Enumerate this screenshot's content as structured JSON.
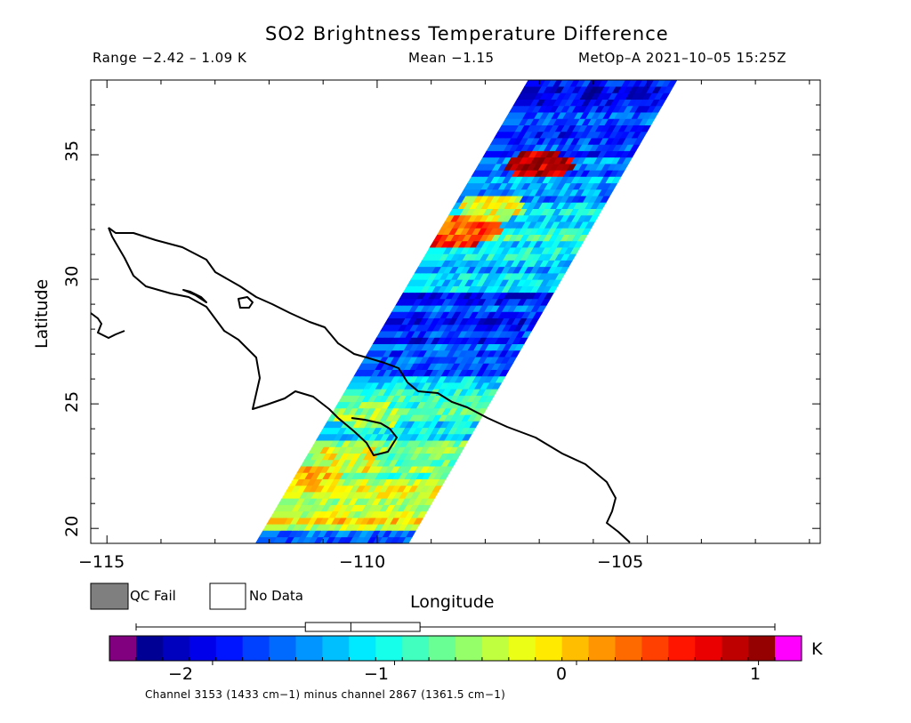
{
  "header": {
    "title": "SO2 Brightness Temperature Difference",
    "range_text": "Range −2.42 – 1.09 K",
    "mean_text": "Mean −1.15",
    "satellite_time": "MetOp–A 2021–10–05 15:25Z"
  },
  "axes": {
    "xlabel": "Longitude",
    "ylabel": "Latitude",
    "lon_range": [
      -115.3,
      -101.8
    ],
    "lat_range": [
      19.4,
      38.0
    ],
    "x_ticks": [
      {
        "value": -115,
        "label": "−115"
      },
      {
        "value": -110,
        "label": "−110"
      },
      {
        "value": -105,
        "label": "−105"
      }
    ],
    "y_ticks": [
      {
        "value": 20,
        "label": "20"
      },
      {
        "value": 25,
        "label": "25"
      },
      {
        "value": 30,
        "label": "30"
      },
      {
        "value": 35,
        "label": "35"
      }
    ]
  },
  "legend": {
    "qc_fail_label": "QC Fail",
    "qc_fail_color": "#7f7f7f",
    "no_data_label": "No Data",
    "no_data_color": "#ffffff"
  },
  "colorbar": {
    "unit": "K",
    "min": -2.42,
    "max": 1.09,
    "under_color": "#800080",
    "over_color": "#ff00ff",
    "ticks": [
      {
        "value": -2,
        "label": "−2"
      },
      {
        "value": -1,
        "label": "−1"
      },
      {
        "value": 0,
        "label": "0"
      },
      {
        "value": 1,
        "label": "1"
      }
    ],
    "boxplot": {
      "min": -2.42,
      "q1": -1.49,
      "median": -1.24,
      "q3": -0.86,
      "max": 1.09
    }
  },
  "footnote": "Channel 3153 (1433 cm−1) minus channel 2867 (1361.5 cm−1)",
  "swath": {
    "edges": [
      {
        "lat": 19.4,
        "lon_west": -112.25,
        "lon_east": -109.42
      },
      {
        "lat": 38.0,
        "lon_west": -107.2,
        "lon_east": -104.45
      }
    ],
    "anomalies": [
      {
        "lat": 31.8,
        "lon": -108.6,
        "value": 0.5
      },
      {
        "lat": 32.1,
        "lon": -108.3,
        "value": 0.3
      },
      {
        "lat": 32.9,
        "lon": -107.9,
        "value": -0.3
      },
      {
        "lat": 34.6,
        "lon": -107.0,
        "value": 0.9
      },
      {
        "lat": 22.0,
        "lon": -111.3,
        "value": -0.1
      },
      {
        "lat": 22.8,
        "lon": -110.6,
        "value": -0.3
      },
      {
        "lat": 24.5,
        "lon": -110.2,
        "value": -0.6
      }
    ]
  }
}
